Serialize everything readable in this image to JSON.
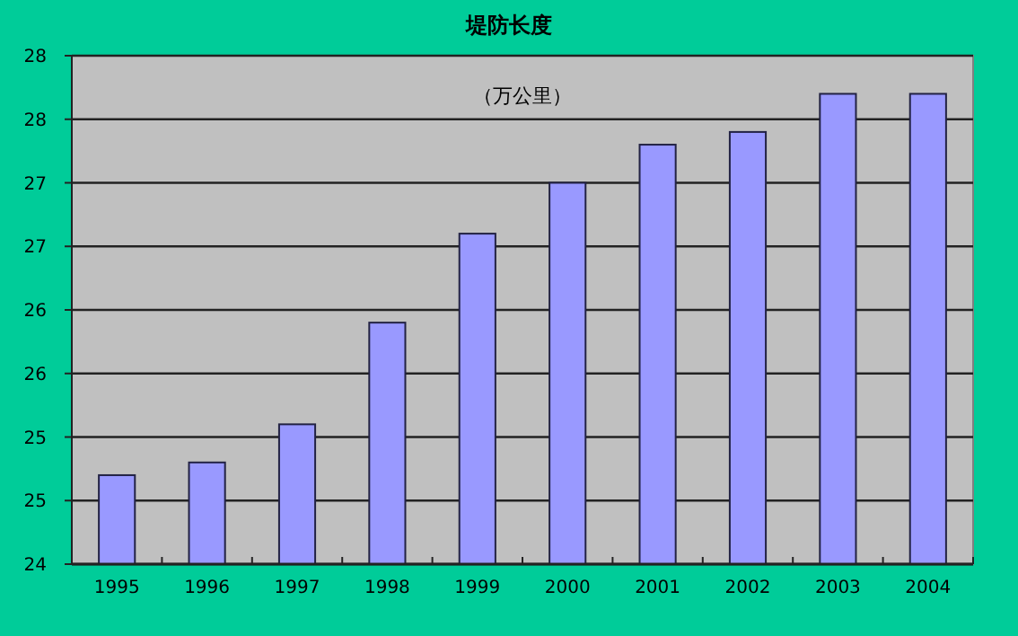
{
  "chart_data": {
    "type": "bar",
    "title": "堤防长度",
    "annotations": [
      "（万公里）"
    ],
    "categories": [
      "1995",
      "1996",
      "1997",
      "1998",
      "1999",
      "2000",
      "2001",
      "2002",
      "2003",
      "2004"
    ],
    "values": [
      24.7,
      24.8,
      25.1,
      25.9,
      26.6,
      27.0,
      27.3,
      27.4,
      27.7,
      27.7
    ],
    "color": "#9999ff",
    "ylim": [
      24,
      28
    ],
    "yticks": [
      24,
      {
        "value": 24.5,
        "label": "25"
      },
      25,
      {
        "value": 25.5,
        "label": "26"
      },
      26,
      {
        "value": 26.5,
        "label": "27"
      },
      27,
      {
        "value": 27.5,
        "label": "28"
      },
      28
    ],
    "grid": "y"
  }
}
